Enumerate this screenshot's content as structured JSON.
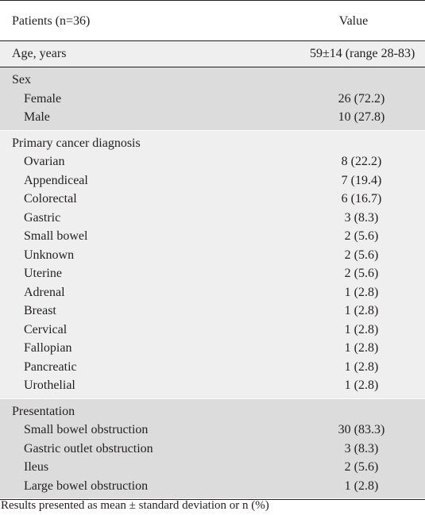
{
  "header": {
    "col1": "Patients (n=36)",
    "col2": "Value"
  },
  "age": {
    "label": "Age, years",
    "value": "59±14 (range 28-83)"
  },
  "sex": {
    "title": "Sex",
    "rows": [
      {
        "label": "Female",
        "value": "26 (72.2)"
      },
      {
        "label": "Male",
        "value": "10 (27.8)"
      }
    ]
  },
  "diagnosis": {
    "title": "Primary cancer diagnosis",
    "rows": [
      {
        "label": "Ovarian",
        "value": "8 (22.2)"
      },
      {
        "label": "Appendiceal",
        "value": "7 (19.4)"
      },
      {
        "label": "Colorectal",
        "value": "6 (16.7)"
      },
      {
        "label": "Gastric",
        "value": "3 (8.3)"
      },
      {
        "label": "Small bowel",
        "value": "2 (5.6)"
      },
      {
        "label": "Unknown",
        "value": "2 (5.6)"
      },
      {
        "label": "Uterine",
        "value": "2 (5.6)"
      },
      {
        "label": "Adrenal",
        "value": "1 (2.8)"
      },
      {
        "label": "Breast",
        "value": "1 (2.8)"
      },
      {
        "label": "Cervical",
        "value": "1 (2.8)"
      },
      {
        "label": "Fallopian",
        "value": "1 (2.8)"
      },
      {
        "label": "Pancreatic",
        "value": "1 (2.8)"
      },
      {
        "label": "Urothelial",
        "value": "1 (2.8)"
      }
    ]
  },
  "presentation": {
    "title": "Presentation",
    "rows": [
      {
        "label": "Small bowel obstruction",
        "value": "30 (83.3)"
      },
      {
        "label": "Gastric outlet obstruction",
        "value": "3 (8.3)"
      },
      {
        "label": "Ileus",
        "value": "2 (5.6)"
      },
      {
        "label": "Large bowel obstruction",
        "value": "1 (2.8)"
      }
    ]
  },
  "footnote": "Results presented as mean ± standard deviation or n (%)",
  "colors": {
    "text": "#231f20",
    "shade_light": "#efefef",
    "shade_dark": "#dcdcdd"
  }
}
